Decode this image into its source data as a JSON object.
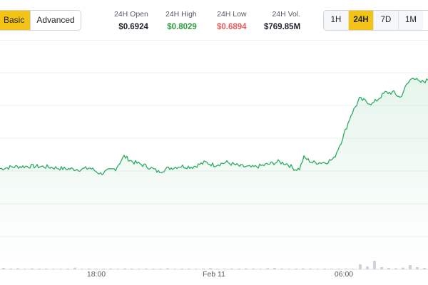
{
  "view_toggle": {
    "basic_label": "Basic",
    "advanced_label": "Advanced",
    "active": "Basic"
  },
  "stats": {
    "open": {
      "label": "24H Open",
      "value": "$0.6924",
      "color": "#1f2329"
    },
    "high": {
      "label": "24H High",
      "value": "$0.8029",
      "color": "#2e9c3f"
    },
    "low": {
      "label": "24H Low",
      "value": "$0.6894",
      "color": "#e55b5b"
    },
    "volume": {
      "label": "24H Vol.",
      "value": "$769.85M",
      "color": "#1f2329"
    }
  },
  "range_selector": {
    "options": [
      {
        "label": "1H"
      },
      {
        "label": "24H",
        "active": true
      },
      {
        "label": "7D"
      },
      {
        "label": "1M"
      }
    ]
  },
  "colors": {
    "line": "#2eac62",
    "accent": "#f3c316",
    "volume_bar": "#cfd3d8"
  },
  "chart_data": {
    "type": "area",
    "title": "",
    "x_tick_labels": [
      {
        "label": "18:00",
        "pos": 0.225
      },
      {
        "label": "Feb 11",
        "pos": 0.5
      },
      {
        "label": "06:00",
        "pos": 0.8
      }
    ],
    "y_range": [
      0.6894,
      0.8029
    ],
    "price_points": [
      [
        0.0,
        0.699
      ],
      [
        0.03,
        0.7005
      ],
      [
        0.07,
        0.701
      ],
      [
        0.11,
        0.7005
      ],
      [
        0.15,
        0.699
      ],
      [
        0.19,
        0.6985
      ],
      [
        0.21,
        0.6996
      ],
      [
        0.235,
        0.695
      ],
      [
        0.255,
        0.6975
      ],
      [
        0.27,
        0.699
      ],
      [
        0.29,
        0.709
      ],
      [
        0.31,
        0.7045
      ],
      [
        0.33,
        0.7025
      ],
      [
        0.35,
        0.7
      ],
      [
        0.37,
        0.6965
      ],
      [
        0.39,
        0.699
      ],
      [
        0.42,
        0.701
      ],
      [
        0.45,
        0.7005
      ],
      [
        0.48,
        0.704
      ],
      [
        0.5,
        0.702
      ],
      [
        0.53,
        0.704
      ],
      [
        0.56,
        0.701
      ],
      [
        0.59,
        0.7
      ],
      [
        0.62,
        0.702
      ],
      [
        0.65,
        0.7045
      ],
      [
        0.67,
        0.703
      ],
      [
        0.69,
        0.6985
      ],
      [
        0.7,
        0.699
      ],
      [
        0.71,
        0.708
      ],
      [
        0.73,
        0.704
      ],
      [
        0.76,
        0.704
      ],
      [
        0.78,
        0.707
      ],
      [
        0.8,
        0.723
      ],
      [
        0.82,
        0.742
      ],
      [
        0.84,
        0.755
      ],
      [
        0.87,
        0.751
      ],
      [
        0.9,
        0.76
      ],
      [
        0.92,
        0.76
      ],
      [
        0.935,
        0.756
      ],
      [
        0.95,
        0.766
      ],
      [
        0.965,
        0.773
      ],
      [
        0.98,
        0.768
      ],
      [
        1.0,
        0.77
      ]
    ],
    "volume": [
      0.1,
      0.06,
      0.08,
      0.05,
      0.07,
      0.05,
      0.06,
      0.04,
      0.05,
      0.06,
      0.12,
      0.05,
      0.06,
      0.04,
      0.05,
      0.06,
      0.05,
      0.07,
      0.04,
      0.05,
      0.06,
      0.04,
      0.05,
      0.08,
      0.04,
      0.05,
      0.06,
      0.05,
      0.06,
      0.09,
      0.05,
      0.04,
      0.06,
      0.05,
      0.07,
      0.06,
      0.05,
      0.08,
      0.1,
      0.06,
      0.05,
      0.04,
      0.07,
      0.06,
      0.05,
      0.06,
      0.04,
      0.05,
      0.06,
      0.05,
      0.35,
      0.2,
      0.6,
      0.15,
      0.1,
      0.08,
      0.12,
      0.3,
      0.15,
      0.1
    ]
  }
}
